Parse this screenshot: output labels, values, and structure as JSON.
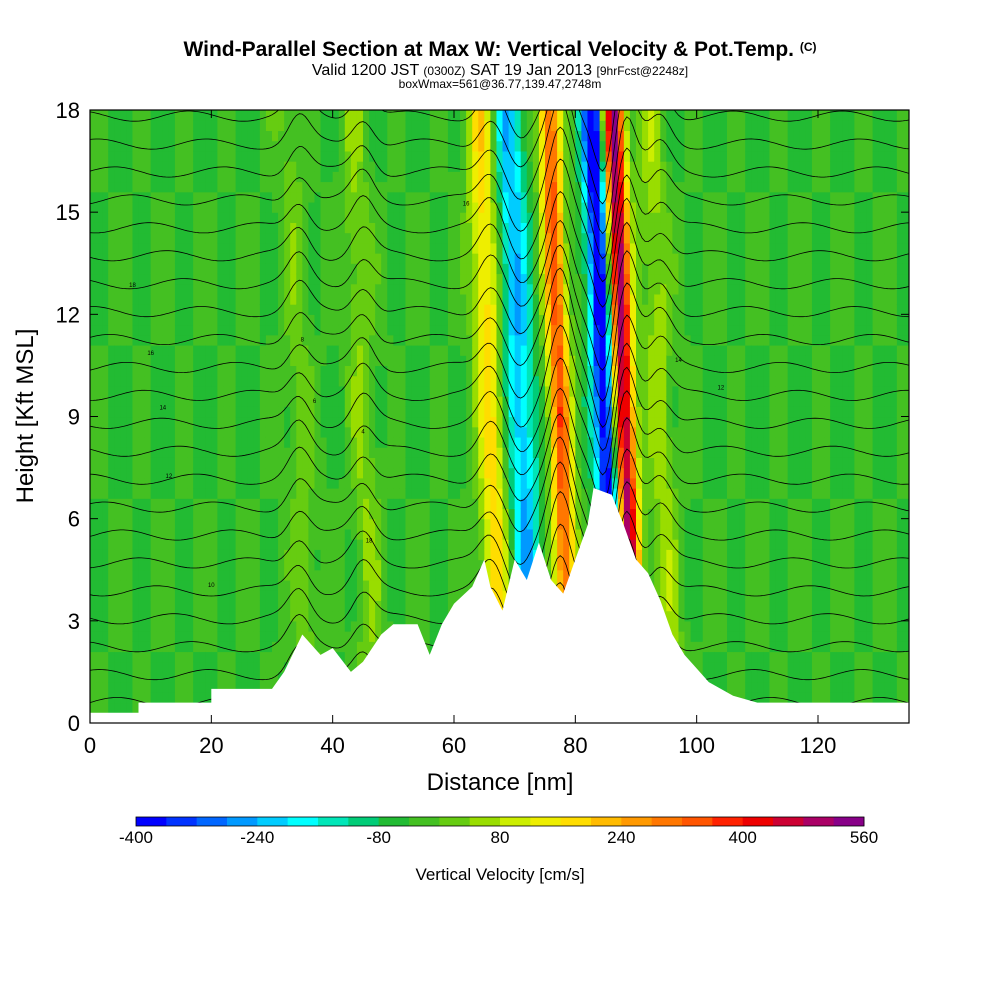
{
  "header": {
    "title": "Wind-Parallel Section at Max W: Vertical Velocity & Pot.Temp.",
    "copyright": "(C)",
    "valid_prefix": "Valid 1200 JST",
    "valid_utc": "(0300Z)",
    "valid_date": "SAT 19 Jan 2013",
    "forecast": "[9hrFcst@2248z]",
    "box_info": "boxWmax=561@36.77,139.47,2748m"
  },
  "chart_data": {
    "type": "heatmap",
    "xlabel": "Distance [nm]",
    "ylabel": "Height [Kft MSL]",
    "xlim": [
      0,
      135
    ],
    "ylim": [
      0,
      18
    ],
    "x_ticks": [
      0,
      20,
      40,
      60,
      80,
      100,
      120
    ],
    "y_ticks": [
      0,
      3,
      6,
      9,
      12,
      15,
      18
    ],
    "colorbar": {
      "label": "Vertical Velocity [cm/s]",
      "min": -400,
      "max": 560,
      "step": 40,
      "tick_labels": [
        "-400",
        "-240",
        "-80",
        "80",
        "240",
        "400",
        "560"
      ],
      "colors": [
        "#0000ff",
        "#0033ff",
        "#0066ff",
        "#0099ff",
        "#00ccff",
        "#00ffff",
        "#00e6b8",
        "#00cc77",
        "#22bb33",
        "#44c022",
        "#66cc11",
        "#99dd00",
        "#ccee00",
        "#eeee00",
        "#ffdd00",
        "#ffbb00",
        "#ff9900",
        "#ff7700",
        "#ff5500",
        "#ff2200",
        "#ee0000",
        "#cc0033",
        "#aa0066",
        "#880088"
      ]
    },
    "terrain_kft": [
      [
        0,
        0.3
      ],
      [
        8,
        0.3
      ],
      [
        8,
        0.6
      ],
      [
        20,
        0.6
      ],
      [
        20,
        1.0
      ],
      [
        30,
        1.0
      ],
      [
        32,
        1.5
      ],
      [
        35,
        2.6
      ],
      [
        38,
        2.0
      ],
      [
        40,
        2.2
      ],
      [
        43,
        1.5
      ],
      [
        45,
        1.8
      ],
      [
        48,
        2.6
      ],
      [
        50,
        2.9
      ],
      [
        54,
        2.9
      ],
      [
        56,
        2.0
      ],
      [
        58,
        2.9
      ],
      [
        60,
        3.5
      ],
      [
        63,
        4.0
      ],
      [
        65,
        4.8
      ],
      [
        66,
        4.0
      ],
      [
        68,
        3.3
      ],
      [
        70,
        4.8
      ],
      [
        72,
        4.2
      ],
      [
        74,
        5.3
      ],
      [
        76,
        4.2
      ],
      [
        78,
        3.8
      ],
      [
        80,
        4.8
      ],
      [
        82,
        5.8
      ],
      [
        83,
        6.9
      ],
      [
        86,
        6.7
      ],
      [
        88,
        5.8
      ],
      [
        90,
        4.8
      ],
      [
        92,
        4.4
      ],
      [
        94,
        3.6
      ],
      [
        96,
        2.6
      ],
      [
        98,
        2.0
      ],
      [
        100,
        1.6
      ],
      [
        102,
        1.2
      ],
      [
        106,
        0.8
      ],
      [
        110,
        0.6
      ],
      [
        135,
        0.6
      ]
    ],
    "updraft_cores": [
      {
        "x_nm": 34.5,
        "w_cms": 60
      },
      {
        "x_nm": 45,
        "w_cms": 80
      },
      {
        "x_nm": 66,
        "w_cms": 220
      },
      {
        "x_nm": 77.5,
        "w_cms": 380
      },
      {
        "x_nm": 88,
        "w_cms": 560
      },
      {
        "x_nm": 94,
        "w_cms": 100
      }
    ],
    "downdraft_cores": [
      {
        "x_nm": 71,
        "w_cms": -200
      },
      {
        "x_nm": 85,
        "w_cms": -400
      }
    ],
    "theta_labels": [
      "18",
      "16",
      "14",
      "12",
      "10",
      "8",
      "6",
      "4"
    ]
  }
}
